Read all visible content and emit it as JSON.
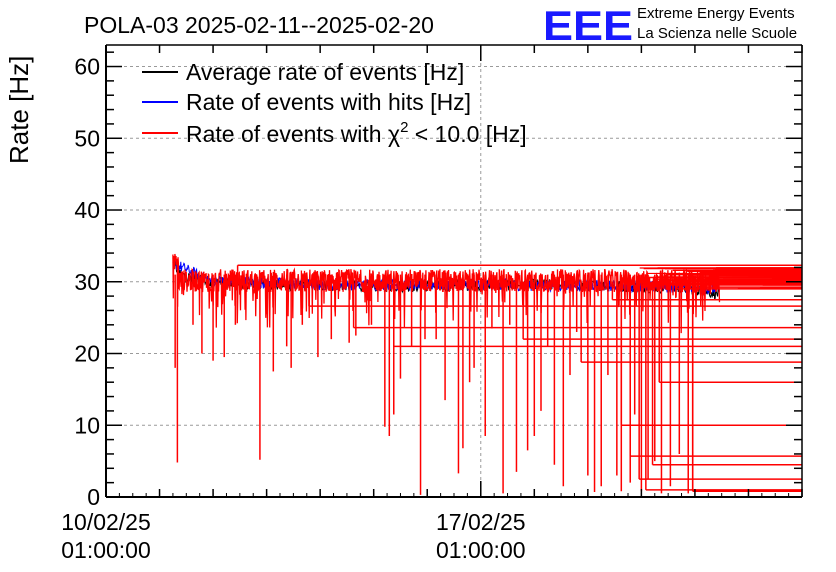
{
  "header": {
    "title": "POLA-03 2025-02-11--2025-02-20"
  },
  "logo": {
    "letters": "EEE",
    "line1": "Extreme Energy Events",
    "line2": "La Scienza nelle Scuole",
    "color": "#1a1aff"
  },
  "chart_data": {
    "type": "line",
    "title": "POLA-03 2025-02-11--2025-02-20",
    "ylabel": "Rate [Hz]",
    "xlabel": "",
    "ylim": [
      0,
      63
    ],
    "yticks": [
      0,
      10,
      20,
      30,
      40,
      50,
      60
    ],
    "ytick_labels": [
      "0",
      "10",
      "20",
      "30",
      "40",
      "50",
      "60"
    ],
    "x_axis_type": "time",
    "xlim": [
      "2025-02-10 01:00:00",
      "2025-02-23 01:00:00"
    ],
    "xticks": [
      {
        "date": "10/02/25",
        "time": "01:00:00",
        "value": "2025-02-10 01:00:00"
      },
      {
        "date": "17/02/25",
        "time": "01:00:00",
        "value": "2025-02-17 01:00:00"
      }
    ],
    "grid": true,
    "legend_position": "top-left",
    "legend": [
      {
        "label": "Average rate of events [Hz]",
        "color": "#000000"
      },
      {
        "label": "Rate of events with hits [Hz]",
        "color": "#0000ff"
      },
      {
        "label_prefix": "Rate of events with ",
        "label_symbol": "χ",
        "label_sup": "2",
        "label_suffix": " < 10.0 [Hz]",
        "color": "#ff0000"
      }
    ],
    "series": [
      {
        "name": "Average rate of events [Hz]",
        "color": "#000000",
        "baseline": 29.7,
        "points": [
          [
            "2025-02-11 07:00:00",
            32.5
          ],
          [
            "2025-02-11 12:00:00",
            30.5
          ],
          [
            "2025-02-12 00:00:00",
            30.0
          ],
          [
            "2025-02-13 00:00:00",
            29.6
          ],
          [
            "2025-02-14 00:00:00",
            29.5
          ],
          [
            "2025-02-15 00:00:00",
            29.4
          ],
          [
            "2025-02-16 00:00:00",
            29.4
          ],
          [
            "2025-02-17 00:00:00",
            29.5
          ],
          [
            "2025-02-18 00:00:00",
            29.6
          ],
          [
            "2025-02-19 00:00:00",
            29.5
          ],
          [
            "2025-02-20 00:00:00",
            29.3
          ],
          [
            "2025-02-21 00:00:00",
            29.0
          ],
          [
            "2025-02-21 12:00:00",
            28.3
          ]
        ]
      },
      {
        "name": "Rate of events with hits [Hz]",
        "color": "#0000ff",
        "baseline": 29.8,
        "points": [
          [
            "2025-02-11 07:00:00",
            32.6
          ],
          [
            "2025-02-12 00:00:00",
            30.1
          ],
          [
            "2025-02-14 00:00:00",
            29.6
          ],
          [
            "2025-02-17 00:00:00",
            29.6
          ],
          [
            "2025-02-20 00:00:00",
            29.4
          ],
          [
            "2025-02-21 12:00:00",
            29.0
          ]
        ]
      },
      {
        "name": "Rate of events with chi2 < 10.0 [Hz]",
        "color": "#ff0000",
        "baseline": 30.0,
        "start": "2025-02-11 07:00:00",
        "end": "2025-02-23 01:00:00",
        "dips": [
          [
            "2025-02-11 08:00:00",
            18.0
          ],
          [
            "2025-02-11 09:00:00",
            4.8
          ],
          [
            "2025-02-11 16:00:00",
            24.0
          ],
          [
            "2025-02-11 20:00:00",
            20.0
          ],
          [
            "2025-02-12 01:00:00",
            19.0
          ],
          [
            "2025-02-12 06:00:00",
            19.5
          ],
          [
            "2025-02-12 11:00:00",
            24.0
          ],
          [
            "2025-02-12 22:00:00",
            5.2
          ],
          [
            "2025-02-13 04:00:00",
            17.5
          ],
          [
            "2025-02-13 10:00:00",
            21.0
          ],
          [
            "2025-02-13 12:00:00",
            18.0
          ],
          [
            "2025-02-13 17:00:00",
            24.0
          ],
          [
            "2025-02-14 00:00:00",
            19.5
          ],
          [
            "2025-02-14 06:00:00",
            22.0
          ],
          [
            "2025-02-14 14:00:00",
            21.5
          ],
          [
            "2025-02-14 17:00:00",
            22.5
          ],
          [
            "2025-02-15 00:00:00",
            24.0
          ],
          [
            "2025-02-15 06:00:00",
            9.8
          ],
          [
            "2025-02-15 08:00:00",
            8.5
          ],
          [
            "2025-02-15 10:00:00",
            11.5
          ],
          [
            "2025-02-15 13:00:00",
            16.5
          ],
          [
            "2025-02-15 18:00:00",
            21.0
          ],
          [
            "2025-02-15 22:00:00",
            0.3
          ],
          [
            "2025-02-16 00:00:00",
            22.0
          ],
          [
            "2025-02-16 05:00:00",
            22.0
          ],
          [
            "2025-02-16 09:00:00",
            13.5
          ],
          [
            "2025-02-16 15:00:00",
            3.3
          ],
          [
            "2025-02-16 17:00:00",
            6.8
          ],
          [
            "2025-02-16 20:00:00",
            16.0
          ],
          [
            "2025-02-16 22:00:00",
            18.0
          ],
          [
            "2025-02-17 03:00:00",
            8.5
          ],
          [
            "2025-02-17 06:00:00",
            23.5
          ],
          [
            "2025-02-17 11:00:00",
            0.5
          ],
          [
            "2025-02-17 14:00:00",
            24.0
          ],
          [
            "2025-02-17 17:00:00",
            3.5
          ],
          [
            "2025-02-17 22:00:00",
            6.5
          ],
          [
            "2025-02-18 01:00:00",
            8.5
          ],
          [
            "2025-02-18 04:00:00",
            12.0
          ],
          [
            "2025-02-18 07:00:00",
            21.0
          ],
          [
            "2025-02-18 10:00:00",
            4.5
          ],
          [
            "2025-02-18 14:00:00",
            1.5
          ],
          [
            "2025-02-18 17:00:00",
            17.0
          ],
          [
            "2025-02-18 20:00:00",
            23.0
          ],
          [
            "2025-02-19 01:00:00",
            3.0
          ],
          [
            "2025-02-19 04:00:00",
            0.7
          ],
          [
            "2025-02-19 07:00:00",
            1.5
          ],
          [
            "2025-02-19 10:00:00",
            17.0
          ],
          [
            "2025-02-19 14:00:00",
            3.0
          ],
          [
            "2025-02-19 16:00:00",
            0.8
          ],
          [
            "2025-02-19 20:00:00",
            2.0
          ],
          [
            "2025-02-19 22:00:00",
            11.5
          ],
          [
            "2025-02-20 01:00:00",
            0.8
          ],
          [
            "2025-02-20 04:00:00",
            2.5
          ],
          [
            "2025-02-20 07:00:00",
            5.0
          ],
          [
            "2025-02-20 10:00:00",
            0.5
          ],
          [
            "2025-02-20 14:00:00",
            1.5
          ],
          [
            "2025-02-20 18:00:00",
            6.0
          ],
          [
            "2025-02-20 22:00:00",
            0.5
          ],
          [
            "2025-02-21 00:00:00",
            1.0
          ]
        ],
        "horizontal_segments": [
          [
            "2025-02-12 12:00:00",
            "2025-02-23 01:00:00",
            32.3
          ],
          [
            "2025-02-13 20:00:00",
            "2025-02-23 01:00:00",
            26.6
          ],
          [
            "2025-02-14 16:00:00",
            "2025-02-23 01:00:00",
            23.6
          ],
          [
            "2025-02-15 10:00:00",
            "2025-02-23 01:00:00",
            21.0
          ],
          [
            "2025-02-17 20:00:00",
            "2025-02-23 01:00:00",
            22.0
          ],
          [
            "2025-02-18 22:00:00",
            "2025-02-23 01:00:00",
            18.8
          ],
          [
            "2025-02-19 12:00:00",
            "2025-02-23 01:00:00",
            27.5
          ],
          [
            "2025-02-19 16:00:00",
            "2025-02-23 01:00:00",
            10.0
          ],
          [
            "2025-02-19 20:00:00",
            "2025-02-23 01:00:00",
            5.7
          ],
          [
            "2025-02-20 00:00:00",
            "2025-02-23 01:00:00",
            2.5
          ],
          [
            "2025-02-20 03:00:00",
            "2025-02-23 01:00:00",
            1.0
          ],
          [
            "2025-02-20 06:00:00",
            "2025-02-23 01:00:00",
            4.5
          ],
          [
            "2025-02-20 09:00:00",
            "2025-02-23 01:00:00",
            16.0
          ],
          [
            "2025-02-20 12:00:00",
            "2025-02-23 01:00:00",
            31.0
          ],
          [
            "2025-02-20 17:00:00",
            "2025-02-23 01:00:00",
            29.0
          ],
          [
            "2025-02-21 00:00:00",
            "2025-02-23 01:00:00",
            0.8
          ]
        ]
      }
    ]
  }
}
